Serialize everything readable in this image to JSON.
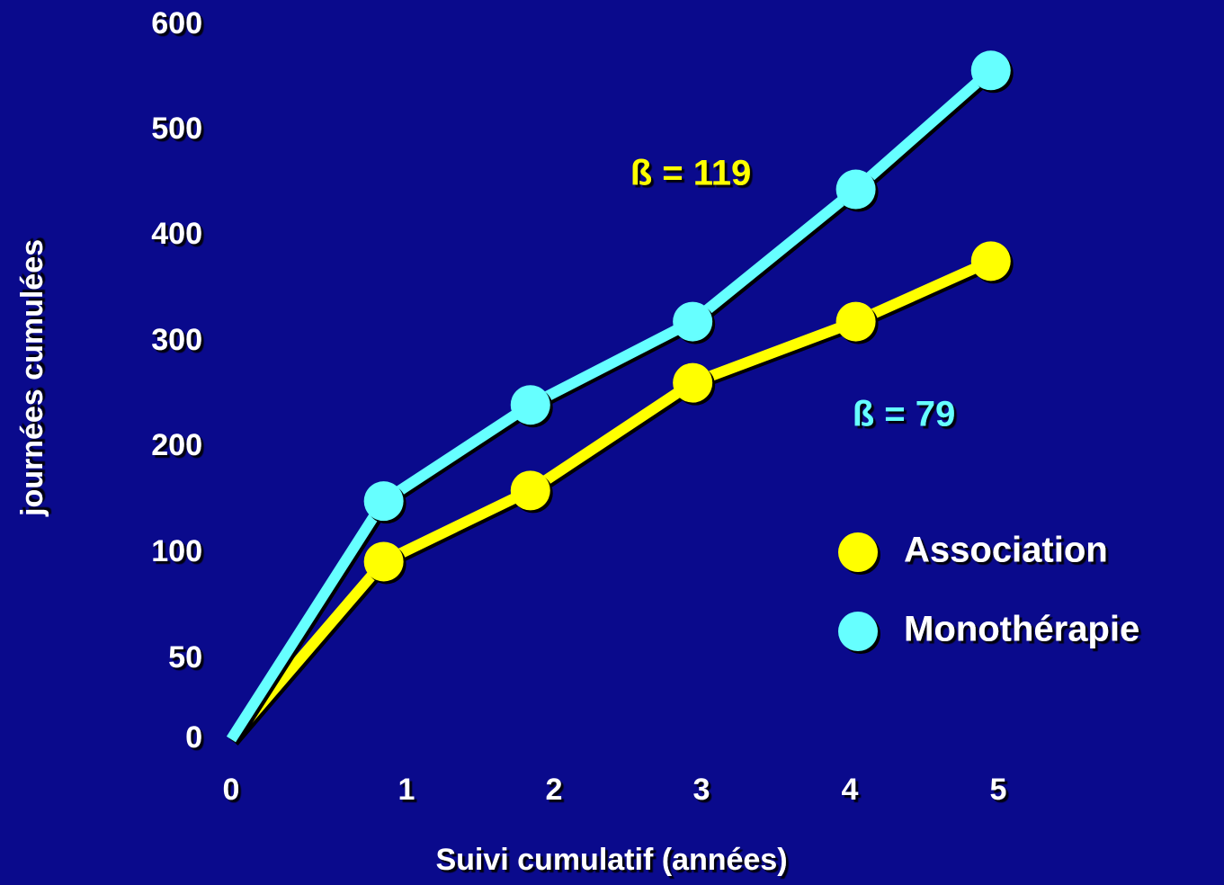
{
  "chart_data": {
    "type": "line",
    "xlabel": "Suivi cumulatif (années)",
    "ylabel": "journées cumulées",
    "xlim": [
      0,
      5.8
    ],
    "xticks": [
      0,
      1,
      2,
      3,
      4,
      5
    ],
    "ylim": [
      0,
      600
    ],
    "yticks": [
      0,
      50,
      100,
      200,
      300,
      400,
      500,
      600
    ],
    "series": [
      {
        "name": "Association",
        "color": "#ffff00",
        "x": [
          0,
          0.87,
          1.84,
          2.94,
          4.04,
          4.95
        ],
        "values": [
          0,
          96,
          159,
          261,
          319,
          376
        ]
      },
      {
        "name": "Monothérapie",
        "color": "#66ffff",
        "x": [
          0,
          0.87,
          1.84,
          2.94,
          4.04,
          4.95
        ],
        "values": [
          0,
          149,
          240,
          319,
          444,
          557
        ]
      }
    ],
    "annotations": [
      {
        "text": "ß = 119",
        "color": "#ffff00"
      },
      {
        "text": "ß = 79",
        "color": "#66ffff"
      }
    ]
  }
}
